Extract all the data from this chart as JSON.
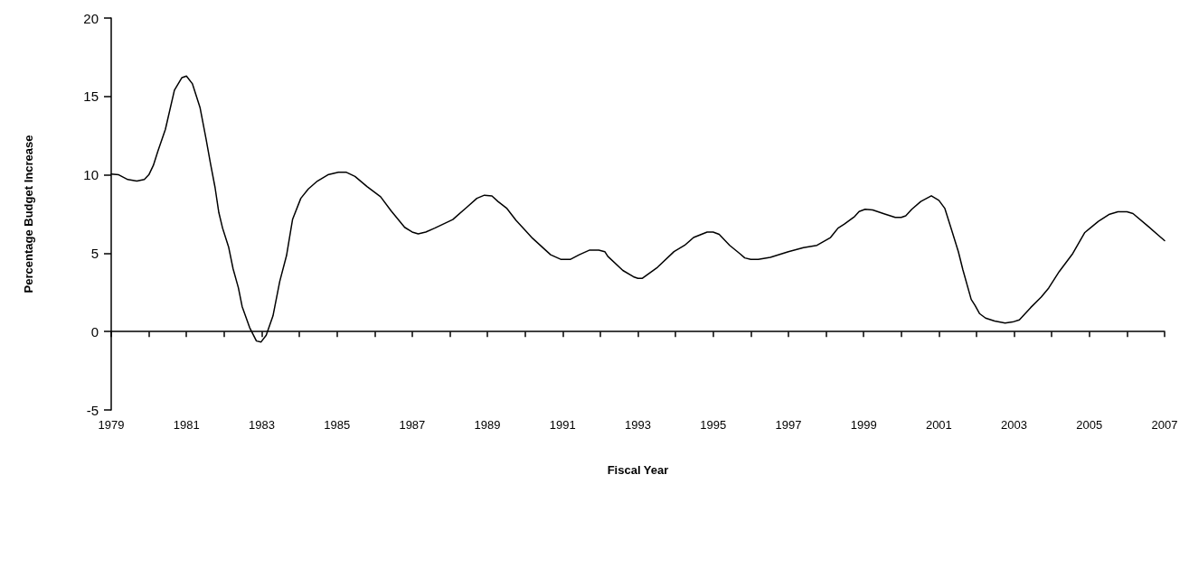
{
  "chart_data": {
    "type": "line",
    "xlabel": "Fiscal Year",
    "ylabel": "Percentage Budget Increase",
    "xlim": [
      1979,
      2007
    ],
    "ylim": [
      -5,
      20
    ],
    "xticks": [
      1979,
      {
        "value": 1980,
        "label": null
      },
      1981,
      {
        "value": 1982,
        "label": null
      },
      1983,
      {
        "value": 1984,
        "label": null
      },
      1985,
      {
        "value": 1986,
        "label": null
      },
      1987,
      {
        "value": 1988,
        "label": null
      },
      1989,
      {
        "value": 1990,
        "label": null
      },
      1991,
      {
        "value": 1992,
        "label": null
      },
      1993,
      {
        "value": 1994,
        "label": null
      },
      1995,
      {
        "value": 1996,
        "label": null
      },
      1997,
      {
        "value": 1998,
        "label": null
      },
      1999,
      {
        "value": 2000,
        "label": null
      },
      2001,
      {
        "value": 2002,
        "label": null
      },
      2003,
      {
        "value": 2004,
        "label": null
      },
      2005,
      {
        "value": 2006,
        "label": null
      },
      2007
    ],
    "yticks": [
      -5,
      0,
      5,
      10,
      15,
      20
    ],
    "marker": "none",
    "line_style": "solid",
    "x": [
      1979,
      1979.2,
      1979.44,
      1979.68,
      1979.88,
      1980,
      1980.12,
      1980.24,
      1980.44,
      1980.68,
      1980.88,
      1981,
      1981.16,
      1981.36,
      1981.52,
      1981.64,
      1981.76,
      1981.86,
      1981.96,
      1982.12,
      1982.24,
      1982.38,
      1982.48,
      1982.68,
      1982.86,
      1982.98,
      1983.12,
      1983.3,
      1983.48,
      1983.66,
      1983.82,
      1984.04,
      1984.24,
      1984.48,
      1984.76,
      1985.04,
      1985.24,
      1985.48,
      1985.8,
      1986.16,
      1986.44,
      1986.8,
      1987,
      1987.16,
      1987.36,
      1987.6,
      1988.08,
      1988.44,
      1988.72,
      1988.92,
      1989.12,
      1989.28,
      1989.52,
      1989.76,
      1990.2,
      1990.68,
      1990.96,
      1991.2,
      1991.44,
      1991.72,
      1991.96,
      1992.12,
      1992.2,
      1992.6,
      1992.88,
      1993,
      1993.12,
      1993.52,
      1993.96,
      1994.24,
      1994.48,
      1994.84,
      1995,
      1995.16,
      1995.44,
      1995.72,
      1995.84,
      1996,
      1996.2,
      1996.52,
      1997,
      1997.4,
      1997.76,
      1998.12,
      1998.32,
      1998.48,
      1998.76,
      1998.88,
      1999.04,
      1999.24,
      1999.56,
      1999.84,
      2000,
      2000.12,
      2000.28,
      2000.52,
      2000.8,
      2001,
      2001.16,
      2001.36,
      2001.52,
      2001.64,
      2001.86,
      2001.96,
      2002.08,
      2002.24,
      2002.48,
      2002.76,
      2002.96,
      2003.14,
      2003.44,
      2003.72,
      2003.92,
      2004.2,
      2004.56,
      2004.88,
      2005.24,
      2005.52,
      2005.76,
      2006,
      2006.16,
      2006.52,
      2007
    ],
    "series": [
      {
        "color": "#000000",
        "values": [
          10.05,
          10.0,
          9.7,
          9.6,
          9.7,
          10.0,
          10.6,
          11.5,
          12.9,
          15.4,
          16.2,
          16.3,
          15.8,
          14.3,
          12.3,
          10.7,
          9.2,
          7.6,
          6.6,
          5.4,
          4.0,
          2.8,
          1.6,
          0.25,
          -0.6,
          -0.67,
          -0.23,
          1.0,
          3.2,
          4.85,
          7.15,
          8.5,
          9.1,
          9.6,
          10.0,
          10.17,
          10.17,
          9.9,
          9.25,
          8.6,
          7.7,
          6.65,
          6.35,
          6.23,
          6.35,
          6.6,
          7.15,
          7.9,
          8.5,
          8.7,
          8.65,
          8.3,
          7.85,
          7.1,
          5.95,
          4.9,
          4.6,
          4.6,
          4.9,
          5.2,
          5.2,
          5.1,
          4.8,
          3.9,
          3.5,
          3.4,
          3.4,
          4.1,
          5.1,
          5.5,
          6.0,
          6.35,
          6.35,
          6.2,
          5.5,
          4.95,
          4.7,
          4.6,
          4.6,
          4.73,
          5.1,
          5.35,
          5.5,
          6.0,
          6.6,
          6.84,
          7.34,
          7.66,
          7.8,
          7.76,
          7.5,
          7.28,
          7.28,
          7.38,
          7.8,
          8.3,
          8.66,
          8.37,
          7.85,
          6.32,
          5.08,
          3.93,
          2.05,
          1.67,
          1.15,
          0.86,
          0.67,
          0.54,
          0.61,
          0.75,
          1.53,
          2.2,
          2.78,
          3.83,
          4.98,
          6.32,
          7.03,
          7.47,
          7.64,
          7.64,
          7.53,
          6.8,
          5.8
        ]
      }
    ]
  }
}
